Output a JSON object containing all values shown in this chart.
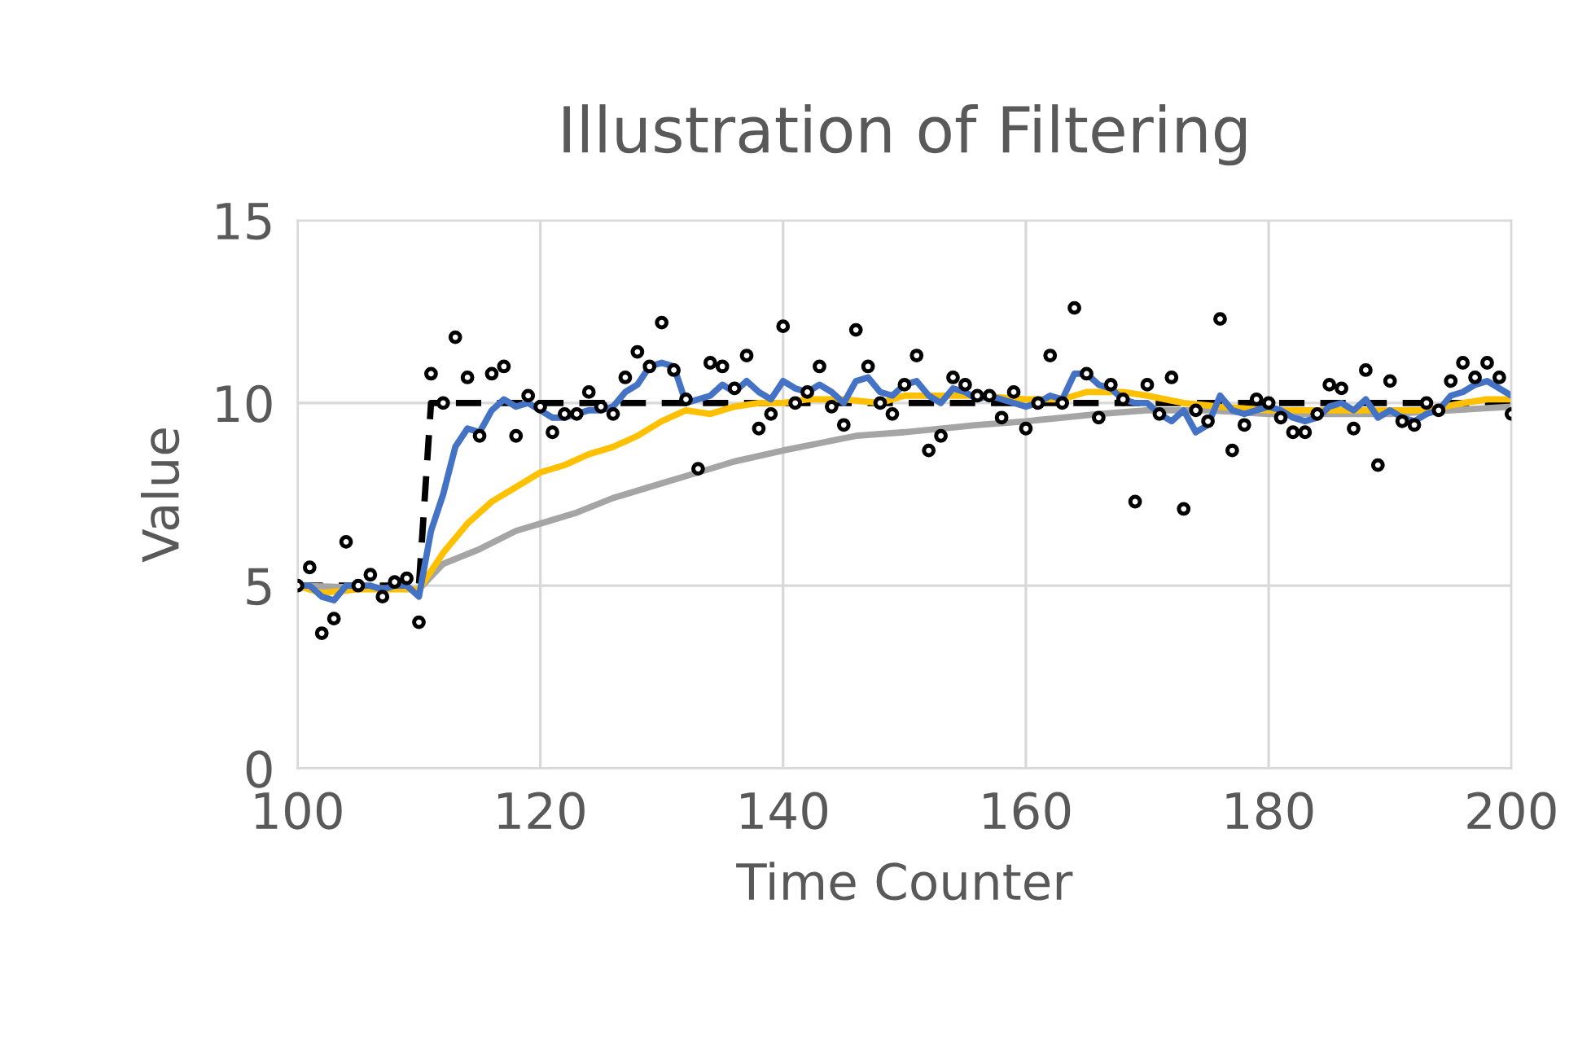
{
  "chart_data": {
    "type": "line",
    "title": "Illustration of Filtering",
    "xlabel": "Time Counter",
    "ylabel": "Value",
    "xlim": [
      100,
      200
    ],
    "xticks": [
      100,
      120,
      140,
      160,
      180,
      200
    ],
    "ylim": [
      0,
      15
    ],
    "yticks": [
      0,
      5,
      10,
      15
    ],
    "grid": true,
    "legend": false,
    "series": [
      {
        "type": "scatter",
        "marker": "circle",
        "color": "#000000",
        "x": [
          100,
          101,
          102,
          103,
          104,
          105,
          106,
          107,
          108,
          109,
          110,
          111,
          112,
          113,
          114,
          115,
          116,
          117,
          118,
          119,
          120,
          121,
          122,
          123,
          124,
          125,
          126,
          127,
          128,
          129,
          130,
          131,
          132,
          133,
          134,
          135,
          136,
          137,
          138,
          139,
          140,
          141,
          142,
          143,
          144,
          145,
          146,
          147,
          148,
          149,
          150,
          151,
          152,
          153,
          154,
          155,
          156,
          157,
          158,
          159,
          160,
          161,
          162,
          163,
          164,
          165,
          166,
          167,
          168,
          169,
          170,
          171,
          172,
          173,
          174,
          175,
          176,
          177,
          178,
          179,
          180,
          181,
          182,
          183,
          184,
          185,
          186,
          187,
          188,
          189,
          190,
          191,
          192,
          193,
          194,
          195,
          196,
          197,
          198,
          199,
          200
        ],
        "values": [
          5.0,
          5.5,
          3.7,
          4.1,
          6.2,
          5.0,
          5.3,
          4.7,
          5.1,
          5.2,
          4.0,
          10.8,
          10.0,
          11.8,
          10.7,
          9.1,
          10.8,
          11.0,
          9.1,
          10.2,
          9.9,
          9.2,
          9.7,
          9.7,
          10.3,
          9.9,
          9.7,
          10.7,
          11.4,
          11.0,
          12.2,
          10.9,
          10.1,
          8.2,
          11.1,
          11.0,
          10.4,
          11.3,
          9.3,
          9.7,
          12.1,
          10.0,
          10.3,
          11.0,
          9.9,
          9.4,
          12.0,
          11.0,
          10.0,
          9.7,
          10.5,
          11.3,
          8.7,
          9.1,
          10.7,
          10.5,
          10.2,
          10.2,
          9.6,
          10.3,
          9.3,
          10.0,
          11.3,
          10.0,
          12.6,
          10.8,
          9.6,
          10.5,
          10.1,
          7.3,
          10.5,
          9.7,
          10.7,
          7.1,
          9.8,
          9.5,
          12.3,
          8.7,
          9.4,
          10.1,
          10.0,
          9.6,
          9.2,
          9.2,
          9.7,
          10.5,
          10.4,
          9.3,
          10.9,
          8.3,
          10.6,
          9.5,
          9.4,
          10.0,
          9.8,
          10.6,
          11.1,
          10.7,
          11.1,
          10.7,
          9.7
        ]
      },
      {
        "line_style": "dashed",
        "color": "#000000",
        "x": [
          100,
          110,
          111,
          200
        ],
        "values": [
          5,
          5,
          10,
          10
        ]
      },
      {
        "line_style": "solid",
        "color": "#a5a5a5",
        "x": [
          100,
          110,
          112,
          115,
          118,
          120,
          123,
          126,
          130,
          133,
          136,
          140,
          143,
          146,
          150,
          153,
          156,
          160,
          163,
          166,
          170,
          175,
          180,
          185,
          190,
          195,
          200
        ],
        "values": [
          5.0,
          4.9,
          5.6,
          6.0,
          6.5,
          6.7,
          7.0,
          7.4,
          7.8,
          8.1,
          8.4,
          8.7,
          8.9,
          9.1,
          9.2,
          9.3,
          9.4,
          9.5,
          9.6,
          9.7,
          9.8,
          9.8,
          9.7,
          9.7,
          9.7,
          9.8,
          9.9
        ]
      },
      {
        "line_style": "solid",
        "color": "#ffc000",
        "x": [
          100,
          102,
          105,
          108,
          110,
          112,
          114,
          116,
          118,
          120,
          122,
          124,
          126,
          128,
          130,
          132,
          134,
          136,
          138,
          140,
          142,
          145,
          148,
          150,
          153,
          156,
          160,
          163,
          165,
          168,
          170,
          173,
          176,
          180,
          183,
          186,
          190,
          193,
          196,
          198,
          200
        ],
        "values": [
          5.0,
          4.8,
          4.9,
          4.9,
          4.9,
          5.9,
          6.7,
          7.3,
          7.7,
          8.1,
          8.3,
          8.6,
          8.8,
          9.1,
          9.5,
          9.8,
          9.7,
          9.9,
          10.0,
          10.0,
          10.1,
          10.1,
          10.0,
          10.2,
          10.2,
          10.2,
          10.1,
          10.1,
          10.3,
          10.3,
          10.2,
          10.0,
          9.9,
          9.8,
          9.8,
          9.8,
          9.8,
          9.8,
          10.0,
          10.1,
          10.1
        ]
      },
      {
        "line_style": "solid",
        "color": "#4472c4",
        "x": [
          100,
          101,
          102,
          103,
          104,
          105,
          106,
          107,
          108,
          109,
          110,
          111,
          112,
          113,
          114,
          115,
          116,
          117,
          118,
          119,
          120,
          121,
          122,
          123,
          124,
          125,
          126,
          127,
          128,
          129,
          130,
          131,
          132,
          133,
          134,
          135,
          136,
          137,
          138,
          139,
          140,
          141,
          142,
          143,
          144,
          145,
          146,
          147,
          148,
          149,
          150,
          151,
          152,
          153,
          154,
          155,
          156,
          157,
          158,
          159,
          160,
          161,
          162,
          163,
          164,
          165,
          166,
          167,
          168,
          169,
          170,
          171,
          172,
          173,
          174,
          175,
          176,
          177,
          178,
          179,
          180,
          181,
          182,
          183,
          184,
          185,
          186,
          187,
          188,
          189,
          190,
          191,
          192,
          193,
          194,
          195,
          196,
          197,
          198,
          199,
          200
        ],
        "values": [
          5.0,
          5.0,
          4.7,
          4.6,
          5.0,
          5.0,
          5.0,
          4.9,
          5.0,
          5.0,
          4.7,
          6.5,
          7.5,
          8.8,
          9.3,
          9.2,
          9.8,
          10.1,
          9.9,
          10.0,
          9.8,
          9.6,
          9.6,
          9.7,
          9.8,
          9.8,
          9.9,
          10.3,
          10.5,
          11.0,
          11.1,
          11.0,
          10.0,
          10.1,
          10.2,
          10.5,
          10.3,
          10.6,
          10.3,
          10.1,
          10.6,
          10.4,
          10.3,
          10.5,
          10.3,
          10.0,
          10.6,
          10.7,
          10.3,
          10.2,
          10.5,
          10.6,
          10.2,
          10.0,
          10.4,
          10.3,
          10.1,
          10.2,
          10.1,
          10.0,
          9.9,
          10.0,
          10.2,
          10.1,
          10.8,
          10.8,
          10.5,
          10.4,
          10.1,
          10.0,
          10.0,
          9.7,
          9.5,
          9.8,
          9.2,
          9.4,
          10.2,
          9.8,
          9.7,
          9.8,
          9.9,
          9.8,
          9.6,
          9.5,
          9.6,
          9.9,
          10.0,
          9.8,
          10.1,
          9.6,
          9.8,
          9.6,
          9.5,
          9.7,
          9.8,
          10.2,
          10.3,
          10.5,
          10.6,
          10.4,
          10.2
        ]
      }
    ]
  }
}
